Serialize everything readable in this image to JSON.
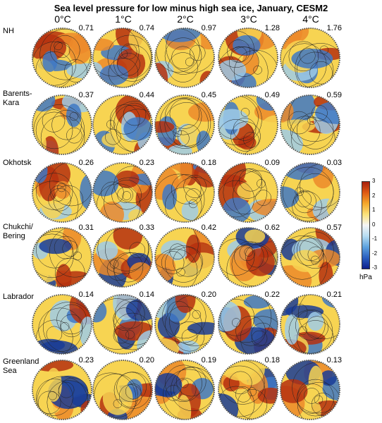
{
  "title": "Sea level pressure for low minus high sea ice, January, CESM2",
  "columns": [
    "0°C",
    "1°C",
    "2°C",
    "3°C",
    "4°C"
  ],
  "rows": [
    {
      "label": "NH",
      "values": [
        "0.71",
        "0.74",
        "0.97",
        "1.28",
        "1.76"
      ]
    },
    {
      "label": "Barents-\nKara",
      "values": [
        "0.37",
        "0.44",
        "0.45",
        "0.49",
        "0.59"
      ]
    },
    {
      "label": "Okhotsk",
      "values": [
        "0.26",
        "0.23",
        "0.18",
        "0.09",
        "0.03"
      ]
    },
    {
      "label": "Chukchi/\nBering",
      "values": [
        "0.31",
        "0.33",
        "0.42",
        "0.62",
        "0.57"
      ]
    },
    {
      "label": "Labrador",
      "values": [
        "0.14",
        "0.14",
        "0.20",
        "0.22",
        "0.21"
      ]
    },
    {
      "label": "Greenland\nSea",
      "values": [
        "0.23",
        "0.20",
        "0.19",
        "0.18",
        "0.13"
      ]
    }
  ],
  "colorbar": {
    "ticks": [
      "3",
      "2",
      "1",
      "0",
      "-1",
      "-2",
      "-3"
    ],
    "unit": "hPa",
    "colors": [
      "#0d1f8c",
      "#2a5fc0",
      "#5ea3de",
      "#b6dcf2",
      "#f5f5f5",
      "#fbe27a",
      "#f4a72b",
      "#df5a14",
      "#a8200d"
    ]
  },
  "map_colors": {
    "red": "#b5300f",
    "orange": "#ec8a2a",
    "yellow": "#f7d452",
    "light": "#eef4f8",
    "lightblue": "#9fcbe8",
    "blue": "#3f78c4",
    "darkblue": "#1a3c97"
  }
}
